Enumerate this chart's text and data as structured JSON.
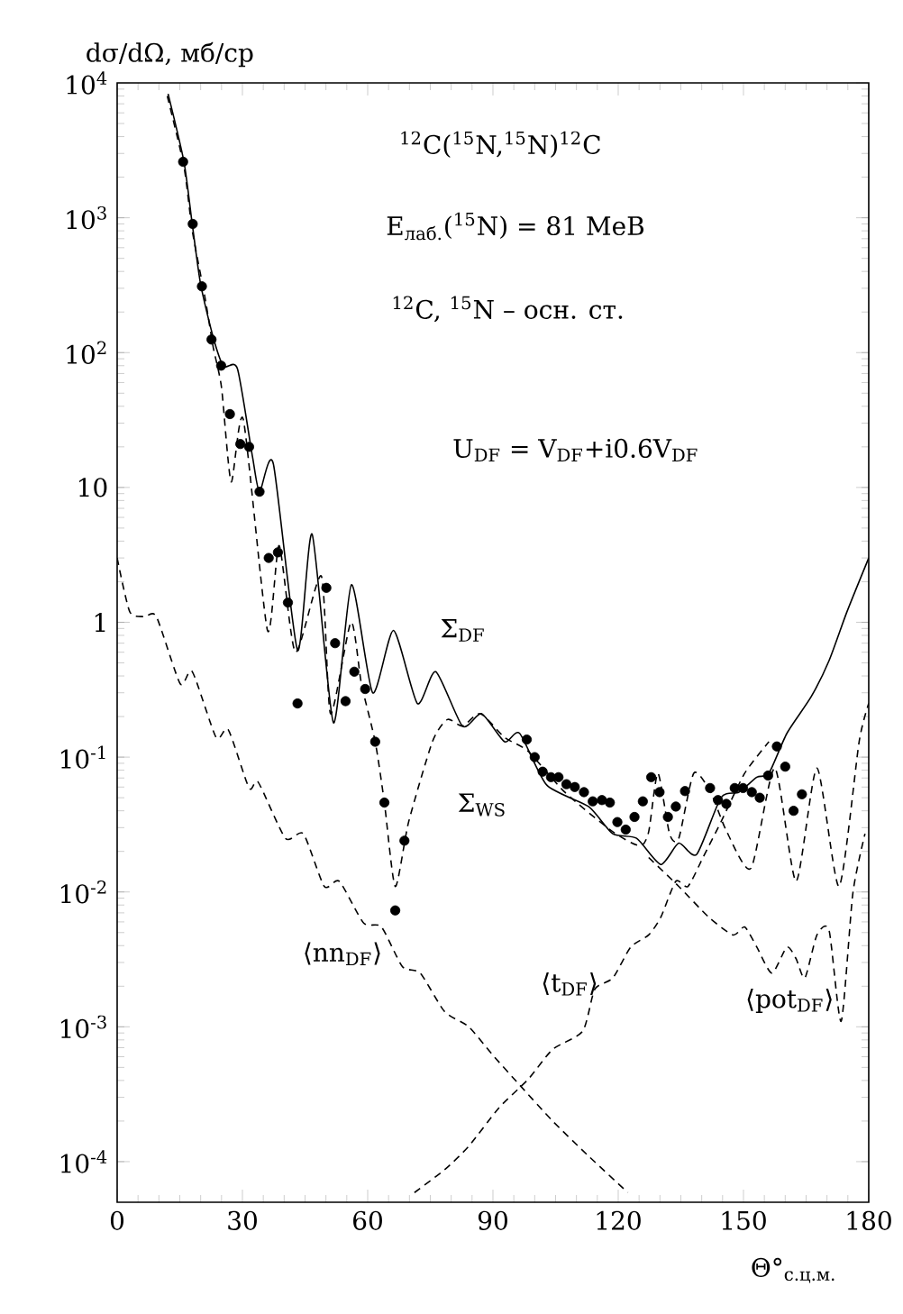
{
  "chart_data": {
    "type": "line",
    "ylabel": "dσ/dΩ, мб/ср",
    "xlabel": "Θ°$_{с.ц.м.}$",
    "xlim": [
      0,
      180
    ],
    "ylim": [
      5e-05,
      10000
    ],
    "log": "y",
    "xticks": [
      0,
      30,
      60,
      90,
      120,
      150,
      180
    ],
    "yticks": [
      {
        "value": 0.0001,
        "label": "10$^{-4}$"
      },
      {
        "value": 0.001,
        "label": "10$^{-3}$"
      },
      {
        "value": 0.01,
        "label": "10$^{-2}$"
      },
      {
        "value": 0.1,
        "label": "10$^{-1}$"
      },
      {
        "value": 1,
        "label": "1"
      },
      {
        "value": 10,
        "label": "10"
      },
      {
        "value": 100,
        "label": "10$^{2}$"
      },
      {
        "value": 1000,
        "label": "10$^{3}$"
      },
      {
        "value": 10000,
        "label": "10$^{4}$"
      }
    ],
    "series": [
      {
        "name": "Σ$_{DF}$",
        "line_style": "solid",
        "color": "#000000",
        "x": [
          12.2,
          16,
          18,
          20,
          23,
          25.5,
          28.8,
          32.4,
          34.1,
          37.4,
          43.2,
          46.7,
          51.8,
          56.1,
          61.2,
          66.2,
          71.9,
          76.3,
          82.7,
          87.3,
          92.8,
          96.4,
          102.9,
          112.9,
          118.7,
          124.4,
          130.2,
          134.5,
          138.8,
          144.6,
          148.9,
          153.2,
          156.1,
          160.4,
          166.2,
          170.5,
          174.8,
          180
        ],
        "values": [
          8300,
          2600,
          890,
          320,
          130,
          79,
          76,
          17,
          9.3,
          15,
          0.62,
          4.5,
          0.18,
          1.9,
          0.3,
          0.87,
          0.25,
          0.43,
          0.17,
          0.21,
          0.13,
          0.15,
          0.062,
          0.043,
          0.027,
          0.025,
          0.016,
          0.023,
          0.019,
          0.05,
          0.055,
          0.071,
          0.076,
          0.15,
          0.28,
          0.52,
          1.2,
          3.0
        ]
      },
      {
        "name": "Σ$_{WS}$",
        "line_style": "dashed",
        "color": "#000000",
        "x": [
          12,
          16,
          18,
          21,
          23,
          25,
          27.3,
          30.2,
          36,
          38.8,
          42.7,
          48.9,
          51.1,
          56,
          58.5,
          61.8,
          64,
          66.6,
          69.8,
          75.5,
          79.1,
          82.7,
          87,
          92.8,
          98.5,
          107.2,
          118.7,
          125.2,
          127.3,
          129.5,
          132.3,
          134.5,
          138.1,
          142.1,
          146,
          151.8,
          157.5,
          162.6,
          167.6,
          172.9,
          177.7,
          180
        ],
        "values": [
          8000,
          2400,
          800,
          260,
          110,
          55,
          11,
          32,
          0.87,
          3.7,
          0.6,
          2.2,
          0.21,
          1.0,
          0.35,
          0.13,
          0.046,
          0.011,
          0.033,
          0.13,
          0.19,
          0.17,
          0.21,
          0.14,
          0.11,
          0.055,
          0.028,
          0.022,
          0.028,
          0.076,
          0.027,
          0.025,
          0.076,
          0.055,
          0.028,
          0.015,
          0.083,
          0.012,
          0.083,
          0.011,
          0.13,
          0.25
        ]
      },
      {
        "name": "⟨nn$_{DF}$⟩",
        "line_style": "dashed",
        "color": "#000000",
        "x": [
          0,
          3,
          6.5,
          9.4,
          15.1,
          18,
          23.7,
          26.6,
          31.6,
          33.8,
          40.3,
          44.6,
          49.6,
          53.2,
          59,
          63.3,
          68.3,
          72.6,
          78.4,
          84.2,
          89.9,
          96.4,
          104.3,
          112.9,
          122.3
        ],
        "values": [
          3.0,
          1.2,
          1.1,
          1.1,
          0.35,
          0.43,
          0.14,
          0.16,
          0.059,
          0.065,
          0.025,
          0.027,
          0.011,
          0.012,
          0.0059,
          0.0055,
          0.0028,
          0.0025,
          0.0013,
          0.001,
          0.00062,
          0.00037,
          0.0002,
          0.00011,
          5.9e-05
        ]
      },
      {
        "name": "⟨t$_{DF}$⟩",
        "line_style": "dashed",
        "color": "#000000",
        "x": [
          71.2,
          78.4,
          84.2,
          91.4,
          98.5,
          104.3,
          111.5,
          114.4,
          118.7,
          123,
          127.3,
          130.2,
          133.8,
          136.7,
          140.3,
          144.6,
          150.3,
          156.1
        ],
        "values": [
          5.9e-05,
          8.7e-05,
          0.00013,
          0.00025,
          0.00041,
          0.00068,
          0.00093,
          0.0019,
          0.0023,
          0.0039,
          0.0048,
          0.0065,
          0.012,
          0.011,
          0.018,
          0.033,
          0.076,
          0.13
        ]
      },
      {
        "name": "⟨pot$_{DF}$⟩",
        "line_style": "dashed",
        "color": "#000000",
        "x": [
          127.3,
          134.5,
          141.7,
          147.5,
          150.3,
          153.2,
          156.8,
          160.4,
          162.6,
          164.7,
          167.6,
          170.5,
          173.4,
          176.2,
          179.1
        ],
        "values": [
          0.018,
          0.011,
          0.0065,
          0.0048,
          0.0055,
          0.0039,
          0.0025,
          0.0039,
          0.0032,
          0.0023,
          0.0048,
          0.0052,
          0.0011,
          0.0098,
          0.027
        ]
      },
      {
        "type": "scatter",
        "marker": "circle",
        "color": "#000000",
        "x": [
          15.8,
          18.1,
          20.3,
          22.6,
          24.9,
          27.0,
          29.5,
          31.6,
          34.1,
          36.3,
          38.5,
          40.9,
          43.2,
          50.1,
          52.2,
          54.7,
          56.8,
          59.4,
          61.8,
          64.0,
          66.6,
          68.8,
          98.1,
          100.0,
          101.9,
          103.9,
          105.7,
          107.6,
          109.6,
          111.8,
          113.9,
          116.1,
          118.0,
          119.8,
          121.8,
          123.9,
          125.9,
          127.9,
          129.9,
          131.9,
          133.8,
          136.0,
          142.0,
          143.9,
          145.9,
          147.9,
          149.9,
          152.0,
          153.9,
          155.9,
          158.0,
          160.0,
          162.0,
          164.0
        ],
        "values": [
          2600,
          900,
          310,
          125,
          80,
          35,
          21,
          20,
          9.3,
          3.0,
          3.3,
          1.4,
          0.25,
          1.8,
          0.7,
          0.26,
          0.43,
          0.32,
          0.13,
          0.046,
          0.0073,
          0.024,
          0.135,
          0.1,
          0.078,
          0.071,
          0.071,
          0.063,
          0.06,
          0.055,
          0.047,
          0.048,
          0.046,
          0.033,
          0.029,
          0.036,
          0.047,
          0.071,
          0.055,
          0.036,
          0.043,
          0.056,
          0.059,
          0.048,
          0.045,
          0.059,
          0.059,
          0.055,
          0.05,
          0.073,
          0.12,
          0.085,
          0.04,
          0.053
        ]
      }
    ],
    "annotations": [
      "$^{12}$C($^{15}$N,$^{15}$N)$^{12}$C",
      "E$_{лаб.}$($^{15}$N) = 81 МеВ",
      "$^{12}$C, $^{15}$N – осн. ст.",
      "U$_{DF}$ = V$_{DF}$+i0.6V$_{DF}$"
    ]
  }
}
